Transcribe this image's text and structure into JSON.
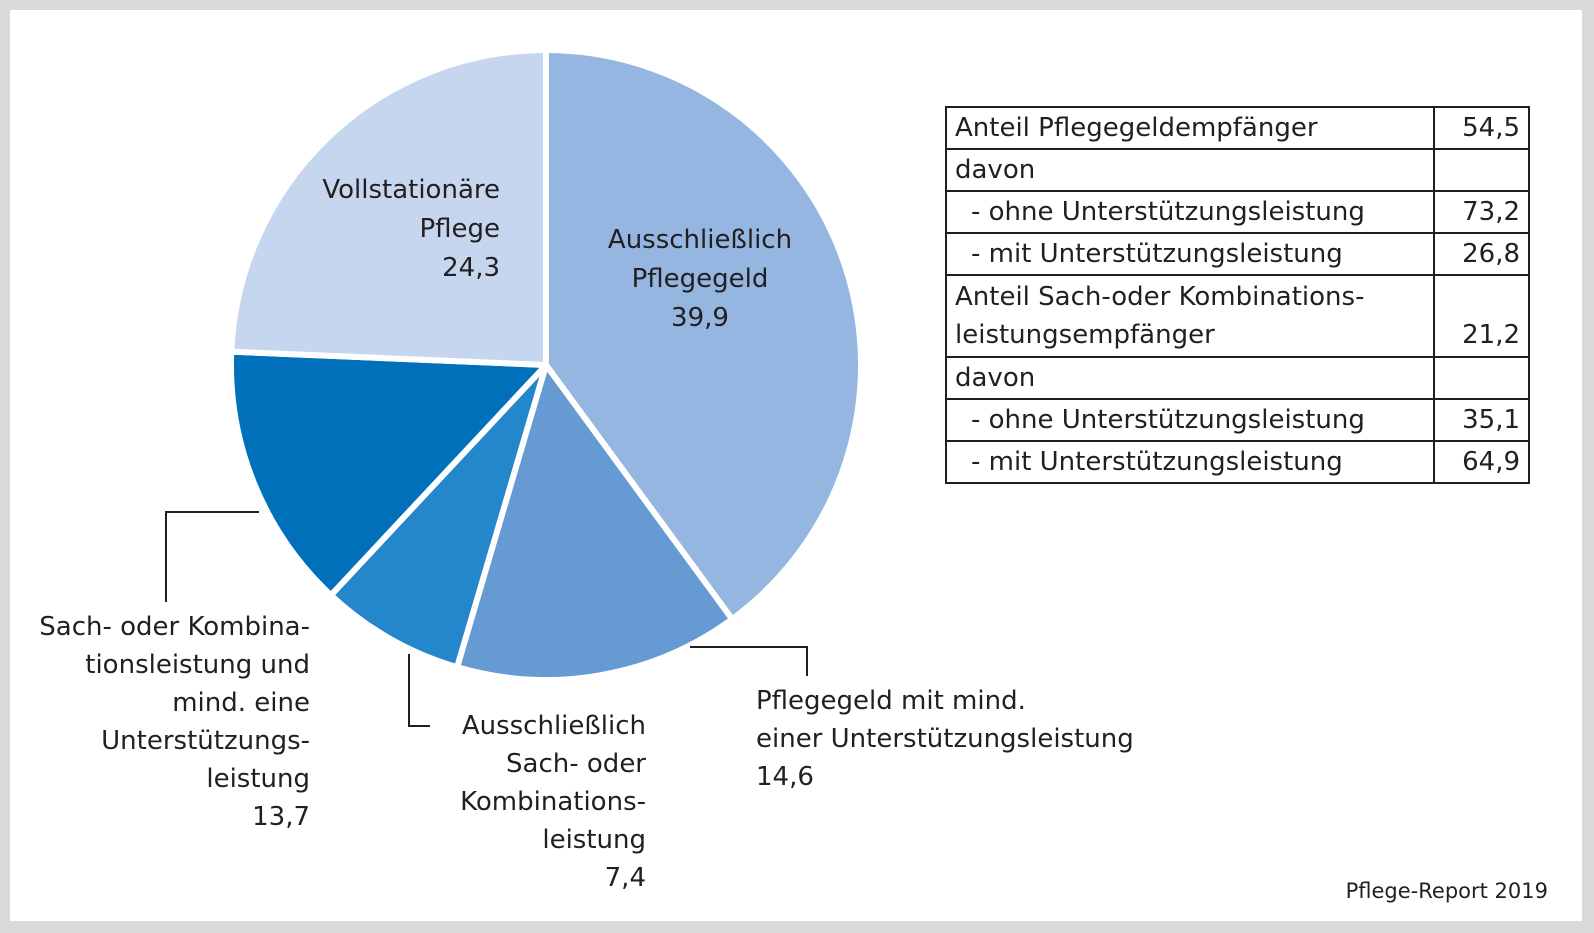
{
  "chart_data": {
    "type": "pie",
    "start_angle_deg": 0,
    "direction": "clockwise",
    "slices": [
      {
        "name": "Ausschließlich Pflegegeld",
        "label_lines": [
          "Ausschließlich",
          "Pflegegeld",
          "39,9"
        ],
        "value": 39.9,
        "color": "#94b6e0"
      },
      {
        "name": "Pflegegeld mit mind. einer Unterstützungsleistung",
        "label_lines": [
          "Pflegegeld mit mind.",
          "einer Unterstützungsleistung",
          "14,6"
        ],
        "value": 14.6,
        "color": "#659ad2"
      },
      {
        "name": "Ausschließlich Sach- oder Kombinationsleistung",
        "label_lines": [
          "Ausschließlich",
          "Sach- oder",
          "Kombinations-",
          "leistung",
          "7,4"
        ],
        "value": 7.4,
        "color": "#2486cb"
      },
      {
        "name": "Sach- oder Kombinationsleistung und mind. eine Unterstützungsleistung",
        "label_lines": [
          "Sach- oder Kombina-",
          "tionsleistung und",
          "mind. eine",
          "Unterstützungs-",
          "leistung",
          "13,7"
        ],
        "value": 13.7,
        "color": "#0070bb"
      },
      {
        "name": "Vollstationäre Pflege",
        "label_lines": [
          "Vollstationäre",
          "Pflege",
          "24,3"
        ],
        "value": 24.3,
        "color": "#c6d6ee"
      }
    ]
  },
  "table": {
    "rows": [
      {
        "label": "Anteil Pflegegeldempfänger",
        "value": "54,5",
        "indent": false
      },
      {
        "label": "davon",
        "value": "",
        "indent": false
      },
      {
        "label": "- ohne Unterstützungsleistung",
        "value": "73,2",
        "indent": true
      },
      {
        "label": "- mit Unterstützungsleistung",
        "value": "26,8",
        "indent": true
      },
      {
        "label": "Anteil Sach-oder Kombinations-\nleistungsempfänger",
        "value": "21,2",
        "indent": false,
        "multiline": true
      },
      {
        "label": "davon",
        "value": "",
        "indent": false
      },
      {
        "label": "- ohne Unterstützungsleistung",
        "value": "35,1",
        "indent": true
      },
      {
        "label": "- mit Unterstützungsleistung",
        "value": "64,9",
        "indent": true
      }
    ]
  },
  "source": "Pflege-Report 2019"
}
